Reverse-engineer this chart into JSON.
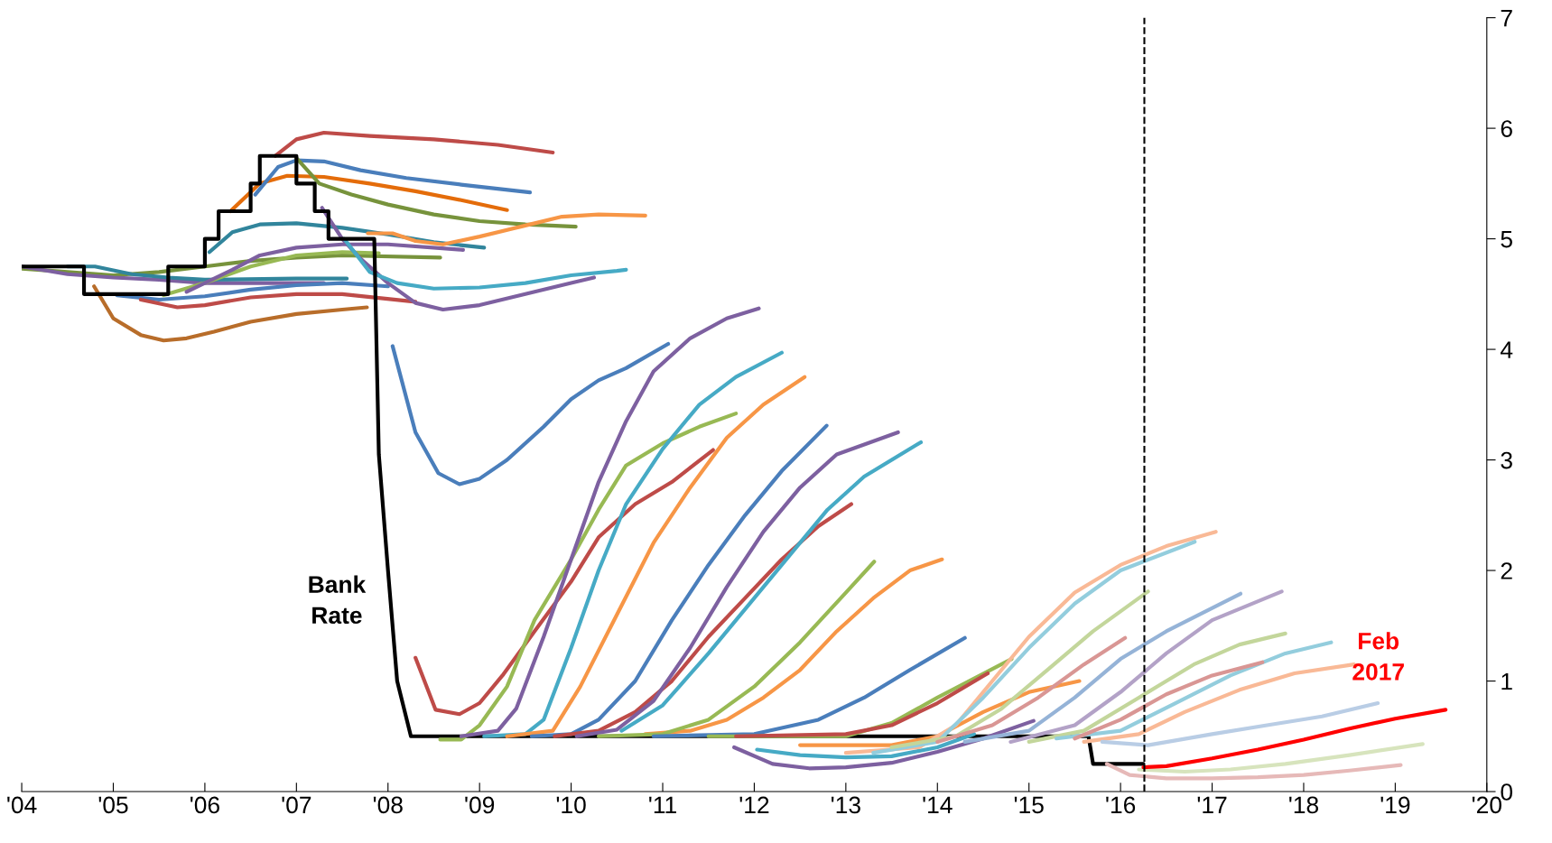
{
  "chart_data": {
    "type": "line",
    "xlim": [
      2004,
      2020
    ],
    "xticks": [
      {
        "value": 2004,
        "label": "'04"
      },
      {
        "value": 2005,
        "label": "'05"
      },
      {
        "value": 2006,
        "label": "'06"
      },
      {
        "value": 2007,
        "label": "'07"
      },
      {
        "value": 2008,
        "label": "'08"
      },
      {
        "value": 2009,
        "label": "'09"
      },
      {
        "value": 2010,
        "label": "'10"
      },
      {
        "value": 2011,
        "label": "'11"
      },
      {
        "value": 2012,
        "label": "'12"
      },
      {
        "value": 2013,
        "label": "'13"
      },
      {
        "value": 2014,
        "label": "'14"
      },
      {
        "value": 2015,
        "label": "'15"
      },
      {
        "value": 2016,
        "label": "'16"
      },
      {
        "value": 2017,
        "label": "'17"
      },
      {
        "value": 2018,
        "label": "'18"
      },
      {
        "value": 2019,
        "label": "'19"
      },
      {
        "value": 2020,
        "label": "'20"
      }
    ],
    "ylim": [
      0,
      7
    ],
    "yticks": [
      0,
      1,
      2,
      3,
      4,
      5,
      6,
      7
    ],
    "grid": false,
    "legend": false,
    "marker": "none",
    "line_style": "solid",
    "ref_lines": [
      {
        "axis": "x",
        "value": 2016.26,
        "color": "#000000",
        "line_style": "dashed"
      }
    ],
    "annotations": [
      "Bank\nRate",
      "Feb\n2017"
    ],
    "series": [
      {
        "color": "#77933c",
        "x": [
          2004,
          2005,
          2005.5,
          2006,
          2006.5,
          2007,
          2007.5,
          2008.57
        ],
        "values": [
          4.73,
          4.67,
          4.7,
          4.75,
          4.8,
          4.83,
          4.85,
          4.83
        ]
      },
      {
        "color": "#7d60a0",
        "x": [
          2004,
          2004.5,
          2005,
          2005.5,
          2006,
          2006.5,
          2007.3
        ],
        "values": [
          4.75,
          4.68,
          4.65,
          4.63,
          4.6,
          4.6,
          4.6
        ]
      },
      {
        "color": "#31859c",
        "x": [
          2004.5,
          2004.8,
          2005.2,
          2005.6,
          2006,
          2007,
          2007.55
        ],
        "values": [
          4.75,
          4.75,
          4.68,
          4.65,
          4.63,
          4.64,
          4.64
        ]
      },
      {
        "color": "#b86d2a",
        "x": [
          2004.79,
          2005.0,
          2005.3,
          2005.55,
          2005.8,
          2006.1,
          2006.5,
          2007,
          2007.5,
          2007.77
        ],
        "values": [
          4.57,
          4.28,
          4.13,
          4.08,
          4.1,
          4.16,
          4.25,
          4.32,
          4.36,
          4.38
        ]
      },
      {
        "color": "#4a7ebb",
        "x": [
          2005.04,
          2005.5,
          2006,
          2006.5,
          2007,
          2007.5,
          2008.0
        ],
        "values": [
          4.49,
          4.45,
          4.48,
          4.54,
          4.58,
          4.6,
          4.57
        ]
      },
      {
        "color": "#be4b48",
        "x": [
          2005.3,
          2005.7,
          2006,
          2006.5,
          2007,
          2007.5,
          2008.3
        ],
        "values": [
          4.45,
          4.38,
          4.4,
          4.47,
          4.5,
          4.5,
          4.43
        ]
      },
      {
        "color": "#98b954",
        "x": [
          2005.55,
          2006,
          2006.5,
          2007,
          2007.5,
          2007.9
        ],
        "values": [
          4.49,
          4.6,
          4.75,
          4.85,
          4.88,
          4.87
        ]
      },
      {
        "color": "#7d60a0",
        "x": [
          2005.8,
          2006.3,
          2006.6,
          2007,
          2007.5,
          2008.0,
          2008.82
        ],
        "values": [
          4.52,
          4.72,
          4.85,
          4.92,
          4.95,
          4.95,
          4.9
        ]
      },
      {
        "color": "#31859c",
        "x": [
          2006.05,
          2006.3,
          2006.6,
          2007,
          2007.5,
          2008,
          2008.5,
          2009.05
        ],
        "values": [
          4.88,
          5.06,
          5.13,
          5.14,
          5.1,
          5.04,
          4.97,
          4.92
        ]
      },
      {
        "color": "#e46c0a",
        "x": [
          2006.28,
          2006.6,
          2006.9,
          2007.3,
          2007.8,
          2008.3,
          2008.8,
          2009.3
        ],
        "values": [
          5.25,
          5.5,
          5.57,
          5.56,
          5.5,
          5.43,
          5.35,
          5.26
        ]
      },
      {
        "color": "#4a7ebb",
        "x": [
          2006.55,
          2006.8,
          2007,
          2007.3,
          2007.7,
          2008.2,
          2008.8,
          2009.55
        ],
        "values": [
          5.4,
          5.65,
          5.71,
          5.7,
          5.62,
          5.55,
          5.49,
          5.42
        ]
      },
      {
        "color": "#be4b48",
        "x": [
          2006.77,
          2007.0,
          2007.3,
          2007.8,
          2008.5,
          2009.2,
          2009.8
        ],
        "values": [
          5.75,
          5.9,
          5.96,
          5.93,
          5.9,
          5.85,
          5.78
        ]
      },
      {
        "color": "#77933c",
        "x": [
          2007.0,
          2007.25,
          2007.6,
          2008,
          2008.5,
          2009,
          2009.5,
          2010.05
        ],
        "values": [
          5.73,
          5.5,
          5.4,
          5.31,
          5.22,
          5.16,
          5.13,
          5.11
        ]
      },
      {
        "color": "#7d60a0",
        "x": [
          2007.28,
          2007.5,
          2007.7,
          2008,
          2008.3,
          2008.6,
          2009,
          2009.5,
          2010.0,
          2010.25
        ],
        "values": [
          5.28,
          5.0,
          4.82,
          4.6,
          4.42,
          4.36,
          4.4,
          4.5,
          4.6,
          4.65
        ]
      },
      {
        "color": "#f79646",
        "x": [
          2007.78,
          2008.05,
          2008.3,
          2008.6,
          2009,
          2009.5,
          2009.9,
          2010.3,
          2010.81
        ],
        "values": [
          5.05,
          5.05,
          4.98,
          4.95,
          5.02,
          5.12,
          5.2,
          5.22,
          5.21
        ]
      },
      {
        "color": "#46aac5",
        "x": [
          2007.52,
          2007.8,
          2008.1,
          2008.5,
          2009,
          2009.5,
          2010,
          2010.5,
          2010.6
        ],
        "values": [
          5.0,
          4.7,
          4.6,
          4.55,
          4.56,
          4.6,
          4.67,
          4.71,
          4.72
        ]
      },
      {
        "color": "#000000",
        "x": [
          2004,
          2004.68,
          2004.68,
          2005.6,
          2005.6,
          2006.0,
          2006.0,
          2006.15,
          2006.15,
          2006.5,
          2006.5,
          2006.6,
          2006.6,
          2007.0,
          2007.0,
          2007.2,
          2007.2,
          2007.35,
          2007.35,
          2007.85,
          2007.9,
          2008.0,
          2008.1,
          2008.25,
          2008.4,
          2015.65,
          2015.7,
          2016.25
        ],
        "values": [
          4.75,
          4.75,
          4.5,
          4.5,
          4.75,
          4.75,
          5.0,
          5.0,
          5.25,
          5.25,
          5.5,
          5.5,
          5.75,
          5.75,
          5.5,
          5.5,
          5.25,
          5.25,
          5.0,
          5.0,
          3.05,
          2.0,
          1.0,
          0.5,
          0.5,
          0.5,
          0.25,
          0.25
        ]
      },
      {
        "color": "#4a7ebb",
        "x": [
          2008.05,
          2008.3,
          2008.55,
          2008.78,
          2009.0,
          2009.3,
          2009.7,
          2010.0,
          2010.3,
          2010.6,
          2011.06
        ],
        "values": [
          4.03,
          3.25,
          2.88,
          2.78,
          2.83,
          3.0,
          3.3,
          3.55,
          3.72,
          3.83,
          4.05
        ]
      },
      {
        "color": "#be4b48",
        "x": [
          2008.3,
          2008.52,
          2008.78,
          2009,
          2009.25,
          2009.6,
          2010,
          2010.3,
          2010.7,
          2011.1,
          2011.55
        ],
        "values": [
          1.21,
          0.74,
          0.7,
          0.8,
          1.05,
          1.45,
          1.9,
          2.3,
          2.6,
          2.8,
          3.09
        ]
      },
      {
        "color": "#98b954",
        "x": [
          2008.57,
          2008.8,
          2009.0,
          2009.3,
          2009.6,
          2010.0,
          2010.3,
          2010.6,
          2011.0,
          2011.4,
          2011.8
        ],
        "values": [
          0.47,
          0.47,
          0.6,
          0.95,
          1.55,
          2.1,
          2.55,
          2.95,
          3.15,
          3.3,
          3.42
        ]
      },
      {
        "color": "#7d60a0",
        "x": [
          2008.8,
          2009.2,
          2009.4,
          2009.7,
          2010,
          2010.3,
          2010.6,
          2010.9,
          2011.3,
          2011.7,
          2012.05
        ],
        "values": [
          0.5,
          0.55,
          0.75,
          1.4,
          2.1,
          2.8,
          3.35,
          3.8,
          4.1,
          4.28,
          4.37
        ]
      },
      {
        "color": "#46aac5",
        "x": [
          2009.05,
          2009.5,
          2009.7,
          2010.0,
          2010.3,
          2010.6,
          2011.0,
          2011.4,
          2011.8,
          2012.3
        ],
        "values": [
          0.5,
          0.52,
          0.65,
          1.3,
          2.0,
          2.6,
          3.1,
          3.5,
          3.75,
          3.97
        ]
      },
      {
        "color": "#f79646",
        "x": [
          2009.3,
          2009.8,
          2010.1,
          2010.5,
          2010.9,
          2011.3,
          2011.7,
          2012.1,
          2012.55
        ],
        "values": [
          0.5,
          0.55,
          0.95,
          1.6,
          2.25,
          2.75,
          3.2,
          3.5,
          3.75
        ]
      },
      {
        "color": "#4a7ebb",
        "x": [
          2009.57,
          2010.0,
          2010.3,
          2010.7,
          2011.1,
          2011.5,
          2011.9,
          2012.3,
          2012.79
        ],
        "values": [
          0.5,
          0.52,
          0.65,
          1.0,
          1.55,
          2.05,
          2.5,
          2.9,
          3.31
        ]
      },
      {
        "color": "#be4b48",
        "x": [
          2009.82,
          2010.3,
          2010.7,
          2011.1,
          2011.5,
          2011.9,
          2012.3,
          2012.7,
          2013.06
        ],
        "values": [
          0.5,
          0.55,
          0.72,
          1.0,
          1.4,
          1.75,
          2.1,
          2.4,
          2.6
        ]
      },
      {
        "color": "#7d60a0",
        "x": [
          2010.06,
          2010.5,
          2010.9,
          2011.3,
          2011.7,
          2012.1,
          2012.5,
          2012.9,
          2013.57
        ],
        "values": [
          0.5,
          0.56,
          0.82,
          1.3,
          1.85,
          2.35,
          2.75,
          3.05,
          3.25
        ]
      },
      {
        "color": "#46aac5",
        "x": [
          2010.55,
          2011.0,
          2011.5,
          2012.0,
          2012.4,
          2012.8,
          2013.2,
          2013.82
        ],
        "values": [
          0.55,
          0.78,
          1.25,
          1.75,
          2.15,
          2.55,
          2.85,
          3.16
        ]
      },
      {
        "color": "#f79646",
        "x": [
          2010.81,
          2011.3,
          2011.7,
          2012.1,
          2012.5,
          2012.9,
          2013.3,
          2013.7,
          2014.05
        ],
        "values": [
          0.52,
          0.55,
          0.65,
          0.85,
          1.1,
          1.45,
          1.75,
          2.0,
          2.1
        ]
      },
      {
        "color": "#98b954",
        "x": [
          2010.3,
          2011.0,
          2011.5,
          2012.0,
          2012.5,
          2013.0,
          2013.31
        ],
        "values": [
          0.5,
          0.52,
          0.65,
          0.95,
          1.35,
          1.8,
          2.08
        ]
      },
      {
        "color": "#4a7ebb",
        "x": [
          2010.9,
          2012,
          2012.7,
          2013.2,
          2013.7,
          2014.3
        ],
        "values": [
          0.5,
          0.52,
          0.65,
          0.85,
          1.1,
          1.39
        ]
      },
      {
        "color": "#98b954",
        "x": [
          2011.5,
          2013,
          2013.5,
          2014,
          2014.81
        ],
        "values": [
          0.5,
          0.5,
          0.62,
          0.85,
          1.2
        ]
      },
      {
        "color": "#be4b48",
        "x": [
          2011.8,
          2013,
          2013.5,
          2014,
          2014.55
        ],
        "values": [
          0.5,
          0.52,
          0.6,
          0.8,
          1.07
        ]
      },
      {
        "color": "#7d60a0",
        "x": [
          2011.78,
          2012.2,
          2012.6,
          2013,
          2013.5,
          2014,
          2014.5,
          2015.05
        ],
        "values": [
          0.4,
          0.25,
          0.21,
          0.22,
          0.26,
          0.36,
          0.48,
          0.64
        ]
      },
      {
        "color": "#46aac5",
        "x": [
          2012.03,
          2012.5,
          2013,
          2013.5,
          2014,
          2014.4
        ],
        "values": [
          0.38,
          0.33,
          0.31,
          0.32,
          0.4,
          0.52
        ]
      },
      {
        "color": "#f79646",
        "x": [
          2012.5,
          2013.5,
          2014,
          2014.5,
          2015.0,
          2015.55
        ],
        "values": [
          0.42,
          0.42,
          0.5,
          0.72,
          0.9,
          1.0
        ]
      },
      {
        "color": "#f9b996",
        "x": [
          2013.0,
          2013.8,
          2014.2,
          2014.6,
          2015.0,
          2015.5,
          2016.0,
          2016.5,
          2017.04
        ],
        "values": [
          0.35,
          0.4,
          0.6,
          1.0,
          1.4,
          1.8,
          2.05,
          2.22,
          2.35
        ]
      },
      {
        "color": "#93cddd",
        "x": [
          2013.3,
          2014,
          2014.5,
          2015,
          2015.5,
          2016,
          2016.81
        ],
        "values": [
          0.35,
          0.45,
          0.85,
          1.3,
          1.7,
          2.0,
          2.26
        ]
      },
      {
        "color": "#c3d69b",
        "x": [
          2013.5,
          2014.2,
          2014.7,
          2015.2,
          2015.7,
          2016.3
        ],
        "values": [
          0.4,
          0.5,
          0.75,
          1.1,
          1.45,
          1.81
        ]
      },
      {
        "color": "#d99694",
        "x": [
          2014,
          2014.6,
          2015.1,
          2015.6,
          2016.05
        ],
        "values": [
          0.45,
          0.6,
          0.85,
          1.15,
          1.39
        ]
      },
      {
        "color": "#95b3d7",
        "x": [
          2014.3,
          2015,
          2015.5,
          2016,
          2016.5,
          2017.31
        ],
        "values": [
          0.45,
          0.55,
          0.85,
          1.2,
          1.45,
          1.79
        ]
      },
      {
        "color": "#b3a2c7",
        "x": [
          2014.8,
          2015.5,
          2016,
          2016.5,
          2017,
          2017.76
        ],
        "values": [
          0.45,
          0.6,
          0.9,
          1.25,
          1.55,
          1.81
        ]
      },
      {
        "color": "#c3d69b",
        "x": [
          2015,
          2015.6,
          2016.2,
          2016.8,
          2017.3,
          2017.8
        ],
        "values": [
          0.45,
          0.55,
          0.85,
          1.15,
          1.33,
          1.43
        ]
      },
      {
        "color": "#93cddd",
        "x": [
          2015.3,
          2016,
          2016.6,
          2017.2,
          2017.8,
          2018.3
        ],
        "values": [
          0.48,
          0.55,
          0.8,
          1.05,
          1.25,
          1.35
        ]
      },
      {
        "color": "#d99694",
        "x": [
          2015.5,
          2016,
          2016.5,
          2017,
          2017.55
        ],
        "values": [
          0.48,
          0.65,
          0.88,
          1.05,
          1.17
        ]
      },
      {
        "color": "#f9b996",
        "x": [
          2015.6,
          2016.2,
          2016.7,
          2017.3,
          2017.9,
          2018.55
        ],
        "values": [
          0.45,
          0.52,
          0.72,
          0.92,
          1.07,
          1.15
        ]
      },
      {
        "color": "#b9cde5",
        "x": [
          2015.8,
          2016.3,
          2017,
          2017.6,
          2018.2,
          2018.81
        ],
        "values": [
          0.45,
          0.42,
          0.52,
          0.6,
          0.68,
          0.8
        ]
      },
      {
        "color": "#d7e4bd",
        "x": [
          2016.2,
          2016.7,
          2017.2,
          2017.8,
          2018.5,
          2019.3
        ],
        "values": [
          0.2,
          0.18,
          0.2,
          0.25,
          0.33,
          0.43
        ]
      },
      {
        "color": "#e6b9b8",
        "x": [
          2015.85,
          2016.1,
          2016.5,
          2017,
          2017.5,
          2018,
          2018.5,
          2019.06
        ],
        "values": [
          0.25,
          0.15,
          0.12,
          0.12,
          0.13,
          0.15,
          0.19,
          0.24
        ]
      },
      {
        "color": "#ff0000",
        "x": [
          2016.25,
          2016.5,
          2017,
          2017.5,
          2018,
          2018.5,
          2019,
          2019.55
        ],
        "values": [
          0.22,
          0.23,
          0.3,
          0.38,
          0.47,
          0.57,
          0.66,
          0.74
        ]
      }
    ]
  }
}
